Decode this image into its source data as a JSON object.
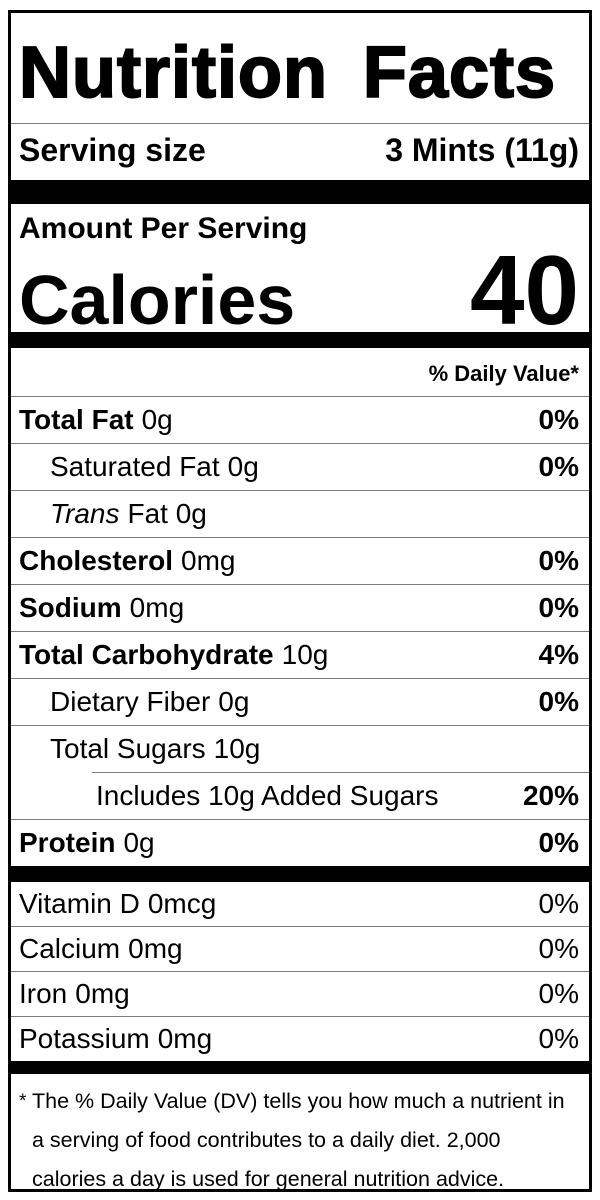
{
  "colors": {
    "text": "#000000",
    "background": "#ffffff",
    "bar": "#000000",
    "rule": "#7c7c7c"
  },
  "label": {
    "title": "Nutrition Facts",
    "serving_size": {
      "label": "Serving size",
      "value": "3 Mints (11g)"
    },
    "amount_per_serving": "Amount Per Serving",
    "calories": {
      "label": "Calories",
      "value": "40"
    },
    "daily_value_header": "% Daily Value*",
    "nutrients": [
      {
        "name": "Total Fat",
        "amount": "0g",
        "dv": "0%"
      },
      {
        "name": "Saturated Fat",
        "amount": "0g",
        "dv": "0%"
      },
      {
        "name": "Trans",
        "amount": "Fat 0g",
        "dv": ""
      },
      {
        "name": "Cholesterol",
        "amount": "0mg",
        "dv": "0%"
      },
      {
        "name": "Sodium",
        "amount": "0mg",
        "dv": "0%"
      },
      {
        "name": "Total Carbohydrate",
        "amount": "10g",
        "dv": "4%"
      },
      {
        "name": "Dietary Fiber",
        "amount": "0g",
        "dv": "0%"
      },
      {
        "name": "Total Sugars",
        "amount": "10g",
        "dv": ""
      },
      {
        "name": "Includes 10g Added Sugars",
        "amount": "",
        "dv": "20%"
      },
      {
        "name": "Protein",
        "amount": "0g",
        "dv": "0%"
      }
    ],
    "vitamins": [
      {
        "name": "Vitamin D",
        "amount": "0mcg",
        "dv": "0%"
      },
      {
        "name": "Calcium",
        "amount": "0mg",
        "dv": "0%"
      },
      {
        "name": "Iron",
        "amount": "0mg",
        "dv": "0%"
      },
      {
        "name": "Potassium",
        "amount": "0mg",
        "dv": "0%"
      }
    ],
    "footnote": {
      "symbol": "*",
      "text": "The % Daily Value (DV) tells you how much a nutrient in a serving of food contributes to a daily diet. 2,000 calories a day is used for general nutrition advice."
    }
  }
}
